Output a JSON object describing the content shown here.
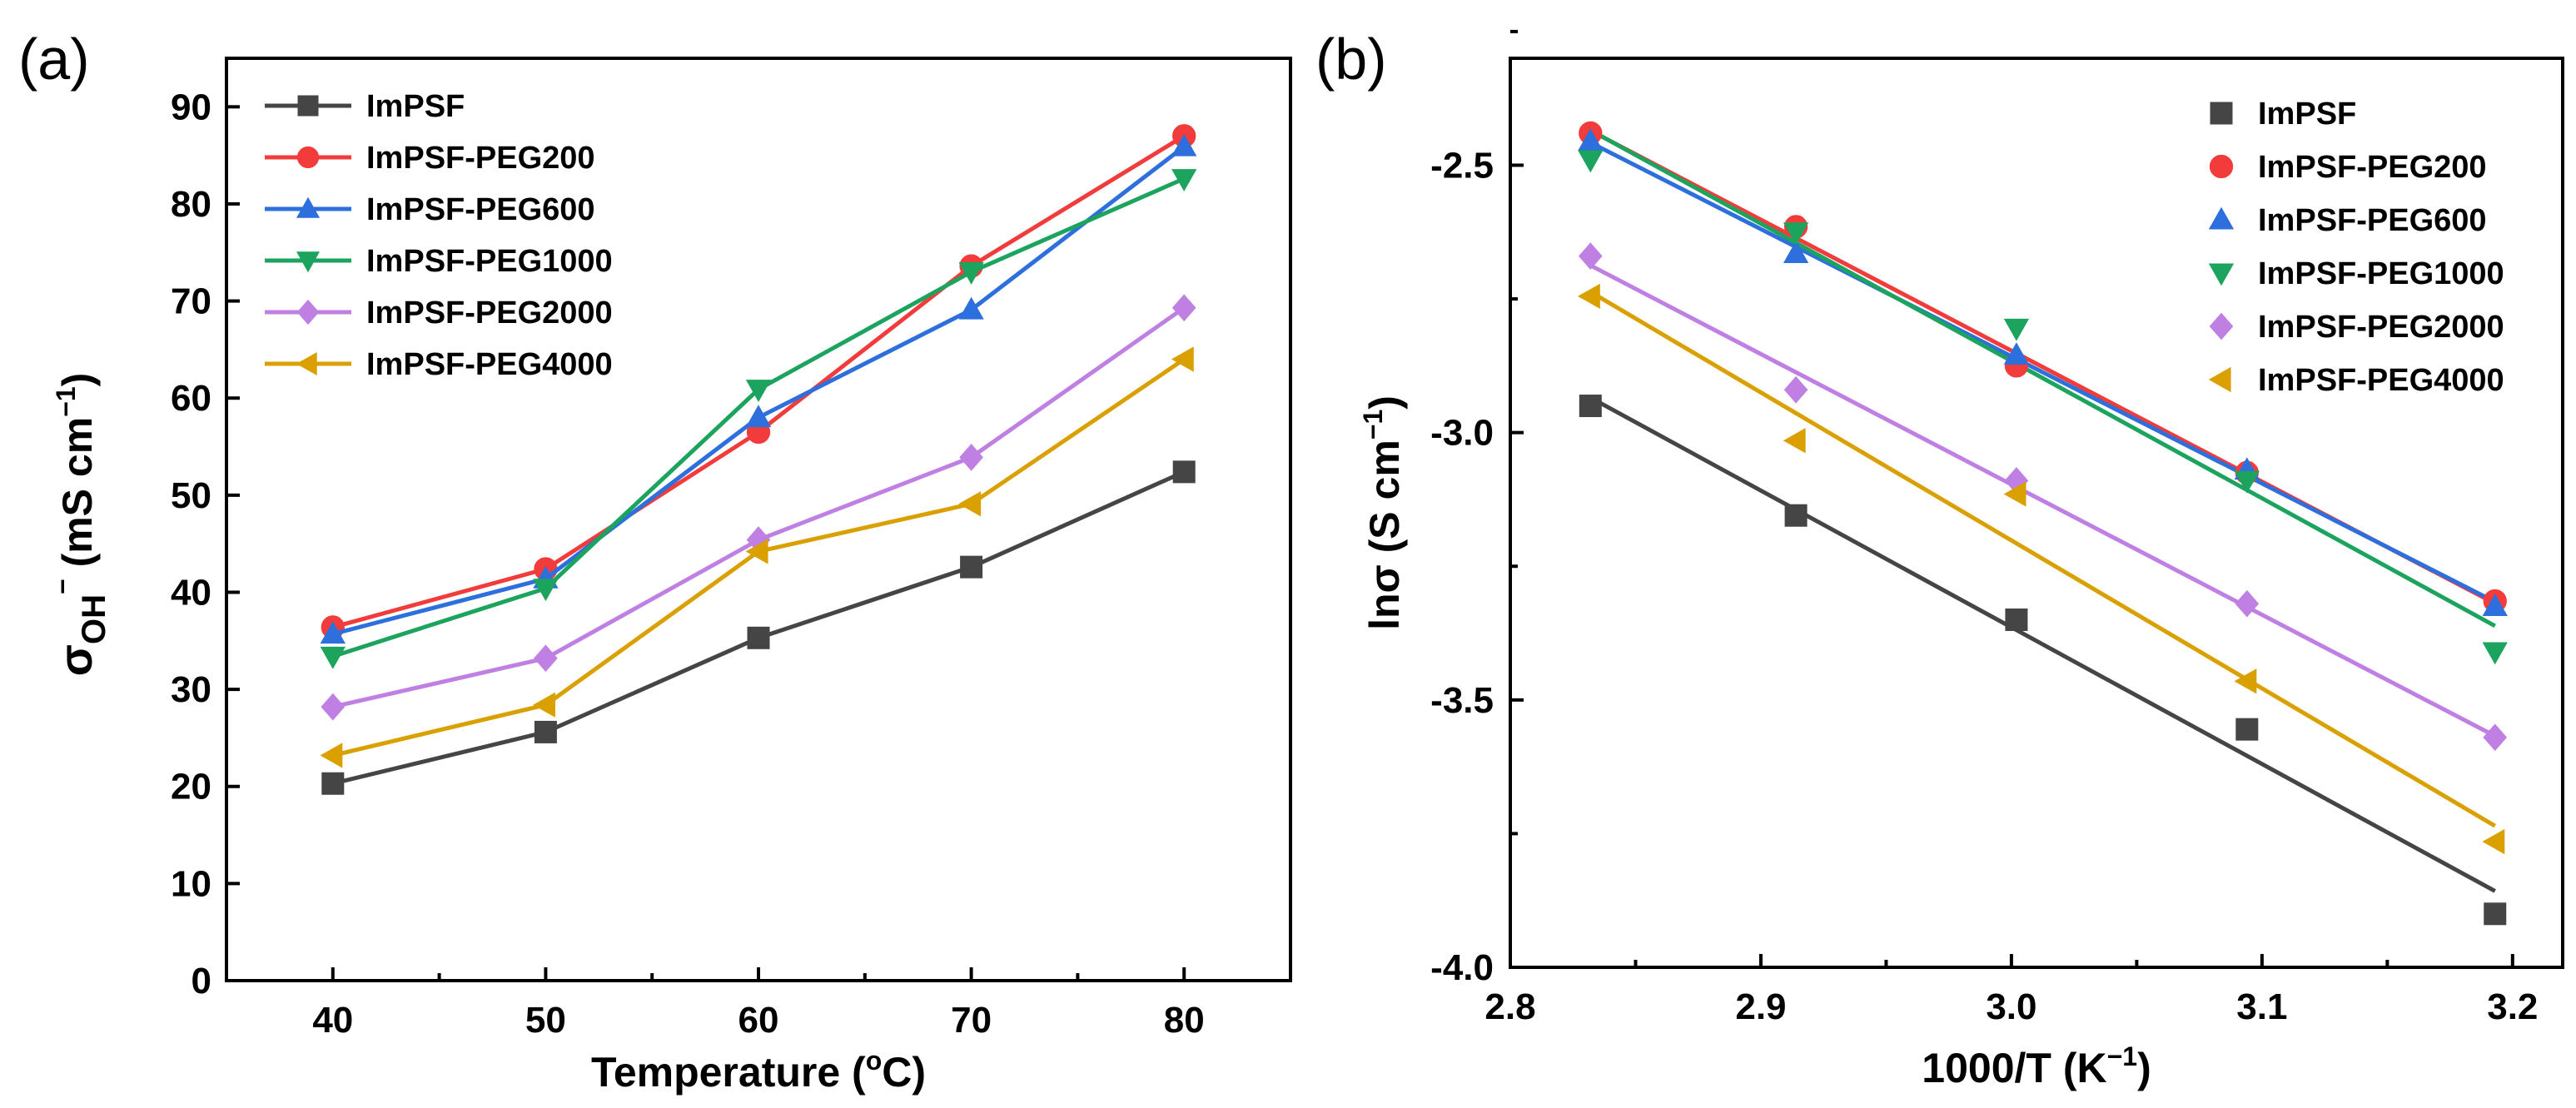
{
  "chart_data": [
    {
      "panel": "(a)",
      "type": "line",
      "x_label": "Temperature (oC)",
      "x_label_parts": {
        "main": "Temperature (",
        "sup": "o",
        "tail": "C)"
      },
      "y_label": "σOH− (mS cm−1)",
      "y_label_parts": {
        "sigma": "σ",
        "sub": "OH",
        "sub_sup": "−",
        "unit": " (mS cm",
        "unit_sup": "−1",
        "close": ")"
      },
      "xlim": [
        35,
        85
      ],
      "ylim": [
        0,
        95
      ],
      "x_ticks": [
        40,
        50,
        60,
        70,
        80
      ],
      "y_ticks": [
        0,
        10,
        20,
        30,
        40,
        50,
        60,
        70,
        80,
        90
      ],
      "legend_position": "top-left",
      "series": [
        {
          "name": "ImPSF",
          "color": "#454545",
          "marker": "square",
          "x": [
            40,
            50,
            60,
            70,
            80
          ],
          "values": [
            20.3,
            25.6,
            35.3,
            42.6,
            52.4
          ]
        },
        {
          "name": "ImPSF-PEG200",
          "color": "#f23c3c",
          "marker": "circle",
          "x": [
            40,
            50,
            60,
            70,
            80
          ],
          "values": [
            36.4,
            42.4,
            56.5,
            73.6,
            87.0
          ]
        },
        {
          "name": "ImPSF-PEG600",
          "color": "#2d6fdc",
          "marker": "triangle-up",
          "x": [
            40,
            50,
            60,
            70,
            80
          ],
          "values": [
            35.7,
            41.4,
            58.0,
            69.1,
            85.9
          ]
        },
        {
          "name": "ImPSF-PEG1000",
          "color": "#1ca35e",
          "marker": "triangle-down",
          "x": [
            40,
            50,
            60,
            70,
            80
          ],
          "values": [
            33.4,
            40.4,
            60.9,
            73.0,
            82.6
          ]
        },
        {
          "name": "ImPSF-PEG2000",
          "color": "#bf7fe3",
          "marker": "diamond",
          "x": [
            40,
            50,
            60,
            70,
            80
          ],
          "values": [
            28.2,
            33.2,
            45.4,
            53.9,
            69.3
          ]
        },
        {
          "name": "ImPSF-PEG4000",
          "color": "#d9a000",
          "marker": "triangle-left",
          "x": [
            40,
            50,
            60,
            70,
            80
          ],
          "values": [
            23.2,
            28.4,
            44.2,
            49.1,
            64.0
          ]
        }
      ]
    },
    {
      "panel": "(b)",
      "type": "scatter",
      "x_label": "1000/T (K−1)",
      "x_label_parts": {
        "main": "1000/T (K",
        "sup": "−1",
        "tail": ")"
      },
      "y_label": "lnσ (S cm−1)",
      "y_label_parts": {
        "main": "lnσ (S cm",
        "sup": "−1",
        "close": ")"
      },
      "xlim": [
        2.8,
        3.22
      ],
      "ylim": [
        -4.0,
        -2.3
      ],
      "x_ticks": [
        2.8,
        2.9,
        3.0,
        3.1,
        3.2
      ],
      "x_tick_labels": [
        "2.8",
        "2.9",
        "3.0",
        "3.1",
        "3.2"
      ],
      "y_ticks": [
        -4.0,
        -3.5,
        -3.0,
        -2.5
      ],
      "y_tick_labels": [
        "-4.0",
        "-3.5",
        "-3.0",
        "-2.5"
      ],
      "legend_position": "top-right",
      "fit_lines": true,
      "series": [
        {
          "name": "ImPSF",
          "color": "#454545",
          "marker": "square",
          "x": [
            2.832,
            2.914,
            3.002,
            3.094,
            3.193
          ],
          "values": [
            -2.95,
            -3.155,
            -3.35,
            -3.555,
            -3.9
          ]
        },
        {
          "name": "ImPSF-PEG200",
          "color": "#f23c3c",
          "marker": "circle",
          "x": [
            2.832,
            2.914,
            3.002,
            3.094,
            3.193
          ],
          "values": [
            -2.44,
            -2.615,
            -2.875,
            -3.075,
            -3.315
          ]
        },
        {
          "name": "ImPSF-PEG600",
          "color": "#2d6fdc",
          "marker": "triangle-up",
          "x": [
            2.832,
            2.914,
            3.002,
            3.094,
            3.193
          ],
          "values": [
            -2.455,
            -2.665,
            -2.855,
            -3.07,
            -3.325
          ]
        },
        {
          "name": "ImPSF-PEG1000",
          "color": "#1ca35e",
          "marker": "triangle-down",
          "x": [
            2.832,
            2.914,
            3.002,
            3.094,
            3.193
          ],
          "values": [
            -2.49,
            -2.625,
            -2.805,
            -3.09,
            -3.41
          ]
        },
        {
          "name": "ImPSF-PEG2000",
          "color": "#bf7fe3",
          "marker": "diamond",
          "x": [
            2.832,
            2.914,
            3.002,
            3.094,
            3.193
          ],
          "values": [
            -2.67,
            -2.92,
            -3.09,
            -3.32,
            -3.57
          ]
        },
        {
          "name": "ImPSF-PEG4000",
          "color": "#d9a000",
          "marker": "triangle-left",
          "x": [
            2.832,
            2.914,
            3.002,
            3.094,
            3.193
          ],
          "values": [
            -2.745,
            -3.015,
            -3.115,
            -3.465,
            -3.765
          ]
        }
      ]
    }
  ]
}
